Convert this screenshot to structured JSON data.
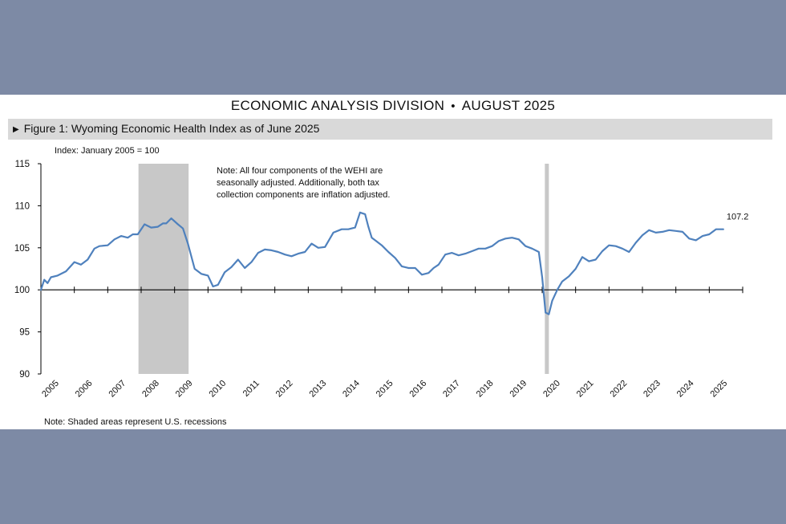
{
  "document": {
    "division": "ECONOMIC ANALYSIS DIVISION",
    "separator": "•",
    "date": "AUGUST 2025",
    "figure_title": "Figure 1: Wyoming Economic Health Index as of June 2025",
    "footnote": "Note: Shaded areas represent U.S. recessions"
  },
  "chart_data": {
    "type": "line",
    "title": "Figure 1: Wyoming Economic Health Index as of June 2025",
    "ylabel": "Index: January 2005 = 100",
    "ylim": [
      90,
      115
    ],
    "yticks": [
      90,
      95,
      100,
      105,
      110,
      115
    ],
    "xlim": [
      2005.0,
      2026.0
    ],
    "xticks": [
      "2005",
      "2006",
      "2007",
      "2008",
      "2009",
      "2010",
      "2011",
      "2012",
      "2013",
      "2014",
      "2015",
      "2016",
      "2017",
      "2018",
      "2019",
      "2020",
      "2021",
      "2022",
      "2023",
      "2024",
      "2025"
    ],
    "annotation": "Note: All four components of the WEHI are seasonally adjusted. Additionally, both tax collection components are inflation adjusted.",
    "annotation_lines": [
      "Note: All four components of the WEHI are",
      "seasonally adjusted. Additionally, both tax",
      "collection components are inflation adjusted."
    ],
    "last_value_label": "107.2",
    "line_color": "#4f81bd",
    "recession_color": "#c8c8c8",
    "recessions": [
      {
        "start": 2007.92,
        "end": 2009.42
      },
      {
        "start": 2020.08,
        "end": 2020.2
      }
    ],
    "series": [
      {
        "x": [
          2005.0,
          2005.1,
          2005.2,
          2005.3,
          2005.5,
          2005.75,
          2006.0,
          2006.2,
          2006.4,
          2006.6,
          2006.75,
          2007.0,
          2007.2,
          2007.4,
          2007.6,
          2007.75,
          2007.9,
          2008.1,
          2008.3,
          2008.5,
          2008.65,
          2008.75,
          2008.9,
          2009.1,
          2009.25,
          2009.4,
          2009.6,
          2009.8,
          2010.0,
          2010.15,
          2010.3,
          2010.5,
          2010.7,
          2010.9,
          2011.1,
          2011.3,
          2011.5,
          2011.7,
          2011.9,
          2012.1,
          2012.3,
          2012.5,
          2012.7,
          2012.9,
          2013.1,
          2013.3,
          2013.5,
          2013.75,
          2014.0,
          2014.2,
          2014.4,
          2014.55,
          2014.7,
          2014.8,
          2014.9,
          2015.0,
          2015.2,
          2015.4,
          2015.6,
          2015.8,
          2016.0,
          2016.2,
          2016.4,
          2016.6,
          2016.75,
          2016.9,
          2017.1,
          2017.3,
          2017.5,
          2017.7,
          2017.9,
          2018.1,
          2018.3,
          2018.5,
          2018.7,
          2018.9,
          2019.1,
          2019.3,
          2019.5,
          2019.7,
          2019.9,
          2020.0,
          2020.1,
          2020.2,
          2020.3,
          2020.45,
          2020.6,
          2020.8,
          2021.0,
          2021.2,
          2021.4,
          2021.6,
          2021.8,
          2022.0,
          2022.2,
          2022.4,
          2022.6,
          2022.8,
          2023.0,
          2023.2,
          2023.4,
          2023.6,
          2023.8,
          2024.0,
          2024.2,
          2024.4,
          2024.6,
          2024.8,
          2025.0,
          2025.2,
          2025.42
        ],
        "values": [
          100.0,
          101.2,
          100.8,
          101.5,
          101.7,
          102.2,
          103.3,
          103.0,
          103.6,
          104.9,
          105.2,
          105.3,
          106.0,
          106.4,
          106.2,
          106.6,
          106.6,
          107.8,
          107.4,
          107.5,
          107.9,
          107.9,
          108.5,
          107.8,
          107.3,
          105.5,
          102.5,
          101.9,
          101.7,
          100.4,
          100.6,
          102.1,
          102.7,
          103.6,
          102.6,
          103.3,
          104.4,
          104.8,
          104.7,
          104.5,
          104.2,
          104.0,
          104.3,
          104.5,
          105.5,
          105.0,
          105.1,
          106.8,
          107.2,
          107.2,
          107.4,
          109.2,
          109.0,
          107.5,
          106.2,
          105.9,
          105.3,
          104.5,
          103.8,
          102.8,
          102.6,
          102.6,
          101.8,
          102.0,
          102.6,
          103.0,
          104.2,
          104.4,
          104.1,
          104.3,
          104.6,
          104.9,
          104.9,
          105.2,
          105.8,
          106.1,
          106.2,
          106.0,
          105.2,
          104.9,
          104.5,
          101.5,
          97.3,
          97.1,
          98.7,
          100.0,
          101.0,
          101.6,
          102.5,
          103.9,
          103.4,
          103.6,
          104.6,
          105.3,
          105.2,
          104.9,
          104.5,
          105.6,
          106.5,
          107.1,
          106.8,
          106.9,
          107.1,
          107.0,
          106.9,
          106.1,
          105.9,
          106.4,
          106.6,
          107.2,
          107.2
        ]
      }
    ]
  }
}
